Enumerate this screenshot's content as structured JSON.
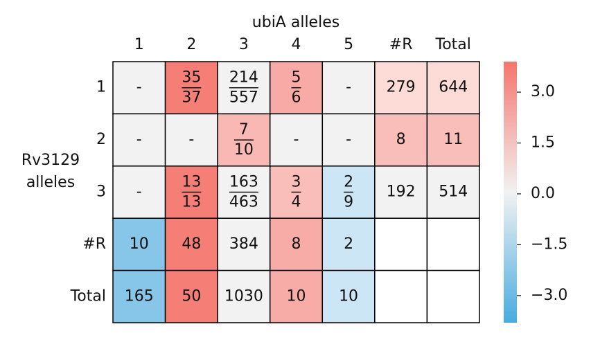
{
  "chart_data": {
    "type": "heatmap",
    "x_label": "ubiA alleles",
    "y_label": [
      "Rv3129",
      "alleles"
    ],
    "x_categories": [
      "1",
      "2",
      "3",
      "4",
      "5",
      "#R",
      "Total"
    ],
    "y_categories": [
      "1",
      "2",
      "3",
      "#R",
      "Total"
    ],
    "cells": [
      [
        {
          "color": "#f2f2f2",
          "text": "-"
        },
        {
          "color": "#f57f76",
          "num": 35,
          "den": 37
        },
        {
          "color": "#f2f2f2",
          "num": 214,
          "den": 557
        },
        {
          "color": "#f8aba6",
          "num": 5,
          "den": 6
        },
        {
          "color": "#f2f2f2",
          "text": "-"
        },
        {
          "color": "#fddcd8",
          "value": 279
        },
        {
          "color": "#fddcd8",
          "value": 644
        }
      ],
      [
        {
          "color": "#f2f2f2",
          "text": "-"
        },
        {
          "color": "#f2f2f2",
          "text": "-"
        },
        {
          "color": "#f9b8b3",
          "num": 7,
          "den": 10
        },
        {
          "color": "#f2f2f2",
          "text": "-"
        },
        {
          "color": "#f2f2f2",
          "text": "-"
        },
        {
          "color": "#f9beb9",
          "value": 8
        },
        {
          "color": "#f9beb9",
          "value": 11
        }
      ],
      [
        {
          "color": "#f2f2f2",
          "text": "-"
        },
        {
          "color": "#f57f76",
          "num": 13,
          "den": 13
        },
        {
          "color": "#f2f2f2",
          "num": 163,
          "den": 463
        },
        {
          "color": "#f9beb9",
          "num": 3,
          "den": 4
        },
        {
          "color": "#cde6f6",
          "num": 2,
          "den": 9
        },
        {
          "color": "#f2f2f2",
          "value": 192
        },
        {
          "color": "#f2f2f2",
          "value": 514
        }
      ],
      [
        {
          "color": "#87c6e8",
          "value": 10
        },
        {
          "color": "#f57f76",
          "value": 48
        },
        {
          "color": "#f2f2f2",
          "value": 384
        },
        {
          "color": "#f8aca8",
          "value": 8
        },
        {
          "color": "#cde6f6",
          "value": 2
        },
        {
          "color": "#ffffff"
        },
        {
          "color": "#ffffff"
        }
      ],
      [
        {
          "color": "#87c6e8",
          "value": 165
        },
        {
          "color": "#f57f76",
          "value": 50
        },
        {
          "color": "#f2f2f2",
          "value": 1030
        },
        {
          "color": "#f8aca8",
          "value": 10
        },
        {
          "color": "#cde6f6",
          "value": 10
        },
        {
          "color": "#ffffff"
        },
        {
          "color": "#ffffff"
        }
      ]
    ],
    "colorbar": {
      "colors": [
        "#f5756d",
        "#f2f2f2",
        "#48abe0"
      ],
      "ylim": [
        -3.8,
        3.9
      ],
      "yticks": [
        {
          "value": 3,
          "label": "3.0"
        },
        {
          "value": 1.5,
          "label": "1.5"
        },
        {
          "value": 0,
          "label": "0.0"
        },
        {
          "value": -1.5,
          "label": "−1.5"
        },
        {
          "value": -3,
          "label": "−3.0"
        }
      ]
    }
  }
}
